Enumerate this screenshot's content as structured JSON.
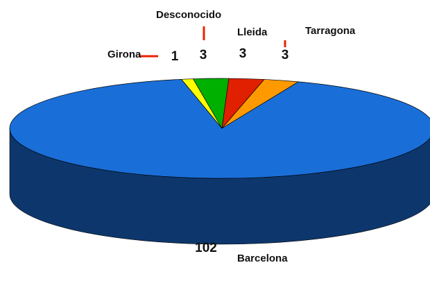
{
  "chart_data": {
    "type": "pie",
    "categories": [
      "Girona",
      "Desconocido",
      "Lleida",
      "Tarragona",
      "Barcelona"
    ],
    "values": [
      1,
      3,
      3,
      3,
      102
    ],
    "colors": [
      "#ffff00",
      "#00b000",
      "#e02000",
      "#ff9900",
      "#1a6ed8"
    ]
  }
}
